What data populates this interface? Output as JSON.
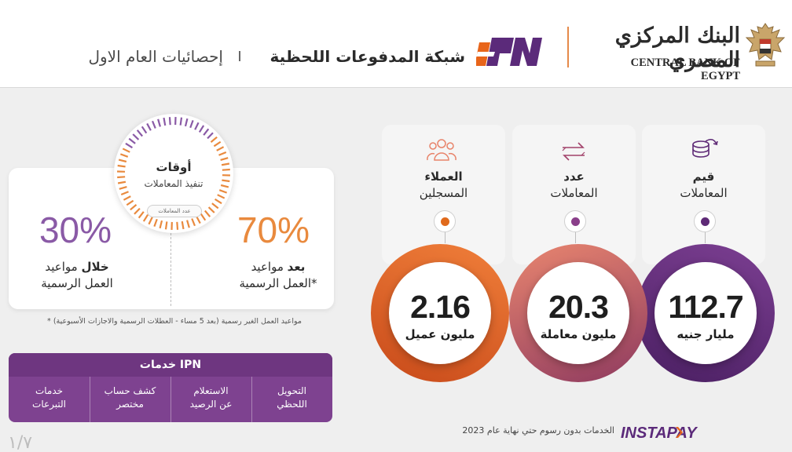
{
  "header": {
    "bank_name_ar": "البنك المركزي المصري",
    "bank_name_en": "CENTRAL BANK OF EGYPT",
    "logo_text": "IPN",
    "title": "شبكة المدفوعات اللحظية",
    "separator": "I",
    "subtitle": "إحصائيات العام الاول"
  },
  "metrics": [
    {
      "line1": "قيم",
      "line2": "المعاملات",
      "value": "112.7",
      "unit": "مليار جنيه",
      "icon": "coins-icon",
      "color": "#5e2a76"
    },
    {
      "line1": "عدد",
      "line2": "المعاملات",
      "value": "20.3",
      "unit": "مليون معاملة",
      "icon": "transfer-arrows-icon",
      "color": "#a2416a"
    },
    {
      "line1": "العملاء",
      "line2": "المسجلين",
      "value": "2.16",
      "unit": "مليون عميل",
      "icon": "users-icon",
      "color": "#e06a1c"
    }
  ],
  "hours": {
    "title": "أوقات",
    "subtitle": "تنفيذ المعاملات",
    "pill": "عدد المعاملات",
    "after": {
      "percent": "70%",
      "bold": "بعد",
      "text1": "مواعيد",
      "text2": "العمل الرسمية*",
      "color": "#e98a3e",
      "share": 70
    },
    "during": {
      "percent": "30%",
      "bold": "خلال",
      "text1": "مواعيد",
      "text2": "العمل الرسمية",
      "color": "#8a5aa6",
      "share": 30
    },
    "note": "* مواعيد العمل الغير رسمية (بعد 5 مساء - العطلات الرسمية والاجازات الأسبوعية)"
  },
  "services": {
    "title": "خدمات IPN",
    "items": [
      {
        "l1": "التحويل",
        "l2": "اللحظي"
      },
      {
        "l1": "الاستعلام",
        "l2": "عن الرصيد"
      },
      {
        "l1": "كشف حساب",
        "l2": "مختصر"
      },
      {
        "l1": "خدمات",
        "l2": "التبرعات"
      }
    ]
  },
  "instapay": {
    "logo": "INSTAPAY",
    "note": "الخدمات بدون رسوم حتي نهاية عام 2023"
  },
  "page_number": "١/٧"
}
